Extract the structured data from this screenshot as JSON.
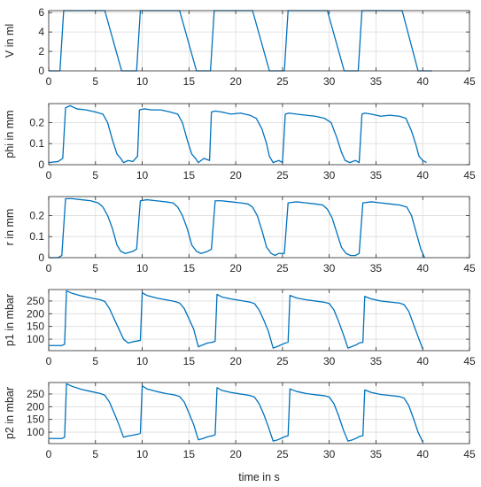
{
  "chart_data": [
    {
      "type": "line",
      "ylabel": "V in ml",
      "xlabel": "",
      "xlim": [
        0,
        45
      ],
      "ylim": [
        0,
        6.2
      ],
      "xticks": [
        0,
        5,
        10,
        15,
        20,
        25,
        30,
        35,
        40,
        45
      ],
      "yticks": [
        0,
        2,
        4,
        6
      ],
      "grid": true,
      "series": [
        {
          "color": "#0072BD",
          "x": [
            0,
            1.2,
            1.6,
            6.0,
            7.8,
            9.4,
            9.8,
            14.0,
            15.8,
            17.3,
            17.7,
            21.8,
            23.6,
            25.2,
            25.6,
            29.8,
            31.6,
            33.1,
            33.5,
            37.8,
            39.5,
            41.0
          ],
          "y": [
            0,
            0,
            6.2,
            6.2,
            0,
            0,
            6.2,
            6.2,
            0,
            0,
            6.2,
            6.2,
            0,
            0,
            6.2,
            6.2,
            0,
            0,
            6.2,
            6.2,
            0,
            0
          ]
        }
      ]
    },
    {
      "type": "line",
      "ylabel": "phi in mm",
      "xlabel": "",
      "xlim": [
        0,
        45
      ],
      "ylim": [
        0,
        0.29
      ],
      "xticks": [
        0,
        5,
        10,
        15,
        20,
        25,
        30,
        35,
        40,
        45
      ],
      "yticks": [
        0,
        0.1,
        0.2
      ],
      "grid": true,
      "series": [
        {
          "color": "#0072BD",
          "x": [
            0,
            1.0,
            1.5,
            1.8,
            2.3,
            3.0,
            4.0,
            5.0,
            5.8,
            6.3,
            6.8,
            7.3,
            7.7,
            8.0,
            8.5,
            9.0,
            9.5,
            9.7,
            10.2,
            11.0,
            12.0,
            13.0,
            13.8,
            14.3,
            14.8,
            15.3,
            15.7,
            16.0,
            16.6,
            17.2,
            17.4,
            17.8,
            18.5,
            19.5,
            20.5,
            21.5,
            22.2,
            22.8,
            23.3,
            23.6,
            24.0,
            24.6,
            25.0,
            25.3,
            25.7,
            26.5,
            27.5,
            28.5,
            29.5,
            30.2,
            30.8,
            31.3,
            31.7,
            32.2,
            32.8,
            33.2,
            33.5,
            33.8,
            34.5,
            35.5,
            36.5,
            37.5,
            38.2,
            38.8,
            39.3,
            39.6,
            40.0,
            40.4
          ],
          "y": [
            0.01,
            0.015,
            0.03,
            0.27,
            0.28,
            0.265,
            0.26,
            0.25,
            0.24,
            0.2,
            0.12,
            0.05,
            0.03,
            0.01,
            0.02,
            0.015,
            0.04,
            0.26,
            0.265,
            0.26,
            0.26,
            0.25,
            0.24,
            0.2,
            0.12,
            0.05,
            0.03,
            0.01,
            0.03,
            0.02,
            0.25,
            0.255,
            0.25,
            0.24,
            0.245,
            0.235,
            0.22,
            0.17,
            0.1,
            0.04,
            0.01,
            0.02,
            0.01,
            0.24,
            0.245,
            0.24,
            0.235,
            0.23,
            0.22,
            0.2,
            0.13,
            0.06,
            0.02,
            0.01,
            0.02,
            0.01,
            0.24,
            0.245,
            0.24,
            0.23,
            0.235,
            0.23,
            0.22,
            0.16,
            0.09,
            0.04,
            0.02,
            0.01
          ]
        }
      ]
    },
    {
      "type": "line",
      "ylabel": "r in mm",
      "xlabel": "",
      "xlim": [
        0,
        45
      ],
      "ylim": [
        0,
        0.29
      ],
      "xticks": [
        0,
        5,
        10,
        15,
        20,
        25,
        30,
        35,
        40,
        45
      ],
      "yticks": [
        0,
        0.1,
        0.2
      ],
      "grid": true,
      "series": [
        {
          "color": "#0072BD",
          "x": [
            0,
            1.0,
            1.4,
            1.8,
            2.5,
            3.5,
            4.5,
            5.3,
            5.8,
            6.3,
            6.8,
            7.3,
            7.7,
            8.2,
            9.0,
            9.4,
            9.8,
            10.5,
            11.5,
            12.5,
            13.3,
            13.8,
            14.3,
            14.8,
            15.3,
            15.8,
            16.3,
            17.0,
            17.4,
            17.8,
            18.5,
            19.5,
            20.5,
            21.3,
            21.8,
            22.3,
            22.8,
            23.3,
            23.8,
            24.2,
            24.6,
            25.2,
            25.6,
            26.5,
            27.5,
            28.5,
            29.3,
            29.8,
            30.3,
            30.8,
            31.3,
            31.8,
            32.3,
            32.8,
            33.2,
            33.6,
            34.5,
            35.5,
            36.5,
            37.5,
            38.3,
            38.8,
            39.3,
            39.8,
            40.2
          ],
          "y": [
            0,
            0,
            0.01,
            0.28,
            0.28,
            0.275,
            0.27,
            0.26,
            0.24,
            0.2,
            0.14,
            0.06,
            0.03,
            0.02,
            0.03,
            0.04,
            0.27,
            0.275,
            0.27,
            0.265,
            0.26,
            0.24,
            0.2,
            0.14,
            0.06,
            0.03,
            0.02,
            0.03,
            0.04,
            0.27,
            0.27,
            0.265,
            0.26,
            0.255,
            0.24,
            0.2,
            0.13,
            0.05,
            0.02,
            0.01,
            0.02,
            0.02,
            0.26,
            0.265,
            0.26,
            0.255,
            0.25,
            0.23,
            0.19,
            0.12,
            0.05,
            0.02,
            0.01,
            0.01,
            0.02,
            0.26,
            0.265,
            0.26,
            0.255,
            0.25,
            0.24,
            0.2,
            0.12,
            0.04,
            0.0
          ]
        }
      ]
    },
    {
      "type": "line",
      "ylabel": "p1 in mbar",
      "xlabel": "",
      "xlim": [
        0,
        45
      ],
      "ylim": [
        55,
        295
      ],
      "xticks": [
        0,
        5,
        10,
        15,
        20,
        25,
        30,
        35,
        40,
        45
      ],
      "yticks": [
        100,
        150,
        200,
        250
      ],
      "grid": true,
      "series": [
        {
          "color": "#0072BD",
          "x": [
            0,
            1.4,
            1.7,
            1.9,
            2.5,
            3.5,
            4.5,
            5.5,
            6.0,
            6.5,
            7.0,
            7.5,
            8.0,
            8.5,
            9.0,
            9.5,
            9.8,
            10.0,
            10.5,
            11.5,
            12.5,
            13.5,
            14.0,
            14.5,
            15.0,
            15.5,
            16.0,
            16.5,
            17.0,
            17.5,
            17.8,
            18.0,
            18.5,
            19.5,
            20.5,
            21.5,
            22.0,
            22.5,
            23.0,
            23.5,
            24.0,
            24.5,
            25.0,
            25.3,
            25.6,
            25.8,
            26.5,
            27.5,
            28.5,
            29.5,
            30.0,
            30.5,
            31.0,
            31.5,
            32.0,
            32.5,
            33.0,
            33.2,
            33.6,
            33.8,
            34.5,
            35.5,
            36.5,
            37.5,
            38.0,
            38.5,
            39.0,
            39.5,
            40.0
          ],
          "y": [
            75,
            75,
            80,
            290,
            280,
            270,
            262,
            255,
            248,
            220,
            180,
            140,
            100,
            85,
            90,
            93,
            95,
            282,
            272,
            262,
            255,
            248,
            242,
            220,
            180,
            140,
            70,
            78,
            85,
            88,
            92,
            276,
            266,
            258,
            252,
            246,
            240,
            215,
            175,
            130,
            65,
            72,
            80,
            85,
            88,
            272,
            262,
            255,
            250,
            245,
            240,
            215,
            170,
            120,
            65,
            72,
            80,
            85,
            88,
            268,
            258,
            250,
            246,
            242,
            236,
            210,
            160,
            110,
            62
          ]
        }
      ]
    },
    {
      "type": "line",
      "ylabel": "p2 in mbar",
      "xlabel": "time in s",
      "xlim": [
        0,
        45
      ],
      "ylim": [
        55,
        295
      ],
      "xticks": [
        0,
        5,
        10,
        15,
        20,
        25,
        30,
        35,
        40,
        45
      ],
      "yticks": [
        100,
        150,
        200,
        250
      ],
      "grid": true,
      "series": [
        {
          "color": "#0072BD",
          "x": [
            0,
            1.4,
            1.7,
            1.9,
            2.5,
            3.5,
            4.5,
            5.5,
            6.0,
            6.5,
            7.0,
            7.5,
            8.0,
            8.5,
            9.0,
            9.5,
            9.8,
            10.0,
            10.5,
            11.5,
            12.5,
            13.5,
            14.0,
            14.5,
            15.0,
            15.5,
            16.0,
            16.5,
            17.0,
            17.5,
            17.8,
            18.0,
            18.5,
            19.5,
            20.5,
            21.5,
            22.0,
            22.5,
            23.0,
            23.5,
            24.0,
            24.5,
            25.0,
            25.3,
            25.6,
            25.8,
            26.5,
            27.5,
            28.5,
            29.5,
            30.0,
            30.5,
            31.0,
            31.5,
            32.0,
            32.5,
            33.0,
            33.2,
            33.6,
            33.8,
            34.5,
            35.5,
            36.5,
            37.5,
            38.0,
            38.5,
            39.0,
            39.5,
            40.0
          ],
          "y": [
            75,
            75,
            80,
            290,
            280,
            268,
            260,
            252,
            245,
            218,
            175,
            130,
            80,
            85,
            88,
            92,
            95,
            282,
            270,
            260,
            252,
            246,
            240,
            218,
            175,
            130,
            70,
            75,
            82,
            86,
            90,
            275,
            264,
            256,
            250,
            244,
            238,
            212,
            170,
            120,
            65,
            70,
            78,
            83,
            86,
            270,
            260,
            252,
            247,
            243,
            238,
            212,
            165,
            110,
            65,
            70,
            78,
            83,
            86,
            266,
            256,
            248,
            244,
            240,
            234,
            205,
            155,
            100,
            62
          ]
        }
      ]
    }
  ]
}
